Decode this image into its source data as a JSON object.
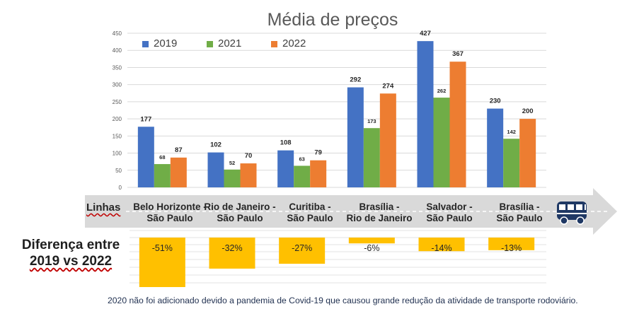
{
  "chart_data": [
    {
      "type": "bar",
      "title": "Média de preços",
      "categories": [
        [
          "Belo Horizonte -",
          "São Paulo"
        ],
        [
          "Rio de Janeiro -",
          "São Paulo"
        ],
        [
          "Curitiba -",
          "São Paulo"
        ],
        [
          "Brasília -",
          "Rio de Janeiro"
        ],
        [
          "Salvador -",
          "São Paulo"
        ],
        [
          "Brasília -",
          "São Paulo"
        ]
      ],
      "series": [
        {
          "name": "2019",
          "color": "#4472c4",
          "values": [
            177,
            102,
            108,
            292,
            427,
            230
          ]
        },
        {
          "name": "2021",
          "color": "#70ad47",
          "values": [
            68,
            52,
            63,
            173,
            262,
            142
          ]
        },
        {
          "name": "2022",
          "color": "#ed7d31",
          "values": [
            87,
            70,
            79,
            274,
            367,
            200
          ]
        }
      ],
      "ylim": [
        0,
        450
      ],
      "yticks": [
        0,
        50,
        100,
        150,
        200,
        250,
        300,
        350,
        400,
        450
      ],
      "grid": true,
      "legend": "top-left"
    },
    {
      "type": "bar",
      "title": "Diferença entre 2019 vs 2022",
      "values": [
        -51,
        -32,
        -27,
        -6,
        -14,
        -13
      ],
      "value_labels": [
        "-51%",
        "-32%",
        "-27%",
        "-6%",
        "-14%",
        "-13%"
      ],
      "color": "#ffc000",
      "grid": true
    }
  ],
  "labels": {
    "axis_row": "Linhas",
    "diff_line1": "Diferença entre",
    "diff_line2": "2019 vs 2022",
    "footnote": "2020 não foi adicionado devido a pandemia de Covid-19 que causou grande redução da atividade de transporte rodoviário."
  },
  "icons": {
    "arrow": "arrow-right-icon",
    "bus": "bus-icon"
  }
}
